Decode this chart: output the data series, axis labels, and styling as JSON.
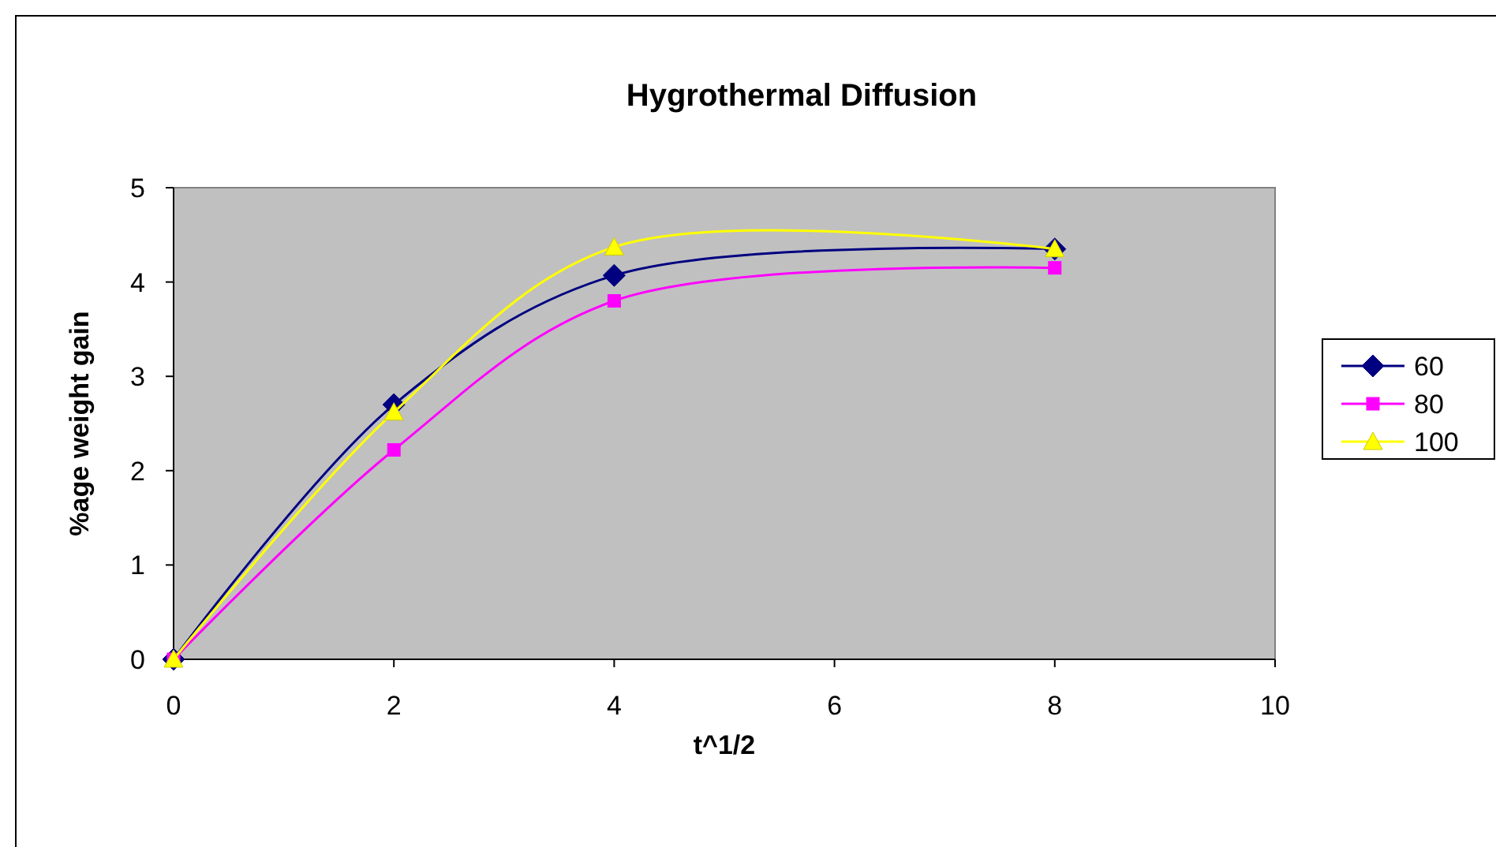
{
  "chart_data": {
    "type": "line",
    "title": "Hygrothermal Diffusion",
    "xlabel": "t^1/2",
    "ylabel": "%age weight gain",
    "x": [
      0,
      2,
      4,
      8
    ],
    "series": [
      {
        "name": "60",
        "color": "#000080",
        "marker": "diamond",
        "values": [
          0,
          2.7,
          4.07,
          4.35
        ]
      },
      {
        "name": "80",
        "color": "#ff00ff",
        "marker": "square",
        "values": [
          0,
          2.22,
          3.8,
          4.15
        ]
      },
      {
        "name": "100",
        "color": "#ffff00",
        "marker": "triangle",
        "values": [
          0,
          2.62,
          4.37,
          4.35
        ]
      }
    ],
    "xlim": [
      0,
      10
    ],
    "xticks": [
      0,
      2,
      4,
      6,
      8,
      10
    ],
    "ylim": [
      0,
      5
    ],
    "yticks": [
      0,
      1,
      2,
      3,
      4,
      5
    ],
    "grid": false,
    "legend": "right"
  }
}
